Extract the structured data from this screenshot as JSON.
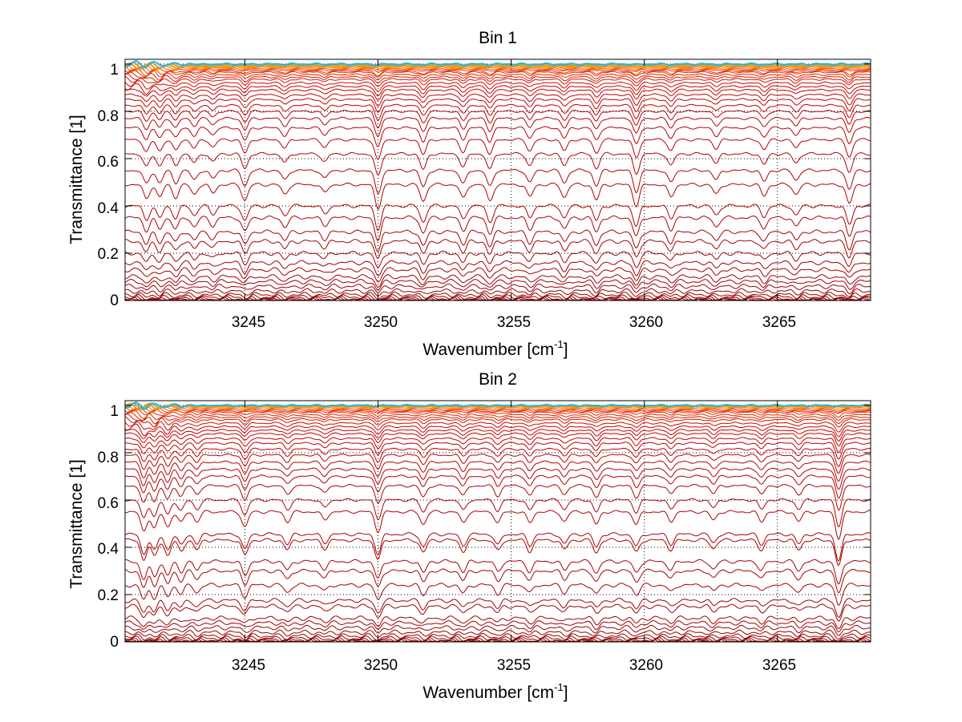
{
  "figure": {
    "panels": [
      {
        "title": "Bin 1",
        "xlabel_main": "Wavenumber [cm",
        "xlabel_sup": "-1",
        "xlabel_end": "]",
        "ylabel": "Transmittance [1]",
        "yticks": [
          "0",
          "0.2",
          "0.4",
          "0.6",
          "0.8",
          "1"
        ],
        "xticks": [
          "3245",
          "3250",
          "3255",
          "3260",
          "3265"
        ]
      },
      {
        "title": "Bin 2",
        "xlabel_main": "Wavenumber [cm",
        "xlabel_sup": "-1",
        "xlabel_end": "]",
        "ylabel": "Transmittance [1]",
        "yticks": [
          "0",
          "0.2",
          "0.4",
          "0.6",
          "0.8",
          "1"
        ],
        "xticks": [
          "3245",
          "3250",
          "3255",
          "3260",
          "3265"
        ]
      }
    ]
  },
  "chart_data": [
    {
      "type": "line",
      "title": "Bin 1",
      "xlabel": "Wavenumber [cm-1]",
      "ylabel": "Transmittance [1]",
      "xlim": [
        3240.5,
        3268.5
      ],
      "ylim": [
        0,
        1.02
      ],
      "xticks": [
        3245,
        3250,
        3255,
        3260,
        3265
      ],
      "yticks": [
        0,
        0.2,
        0.4,
        0.6,
        0.8,
        1
      ],
      "grid": true,
      "legend": "none",
      "absorption_lines_x": [
        3241.3,
        3241.8,
        3242.4,
        3243.1,
        3243.8,
        3245.0,
        3246.5,
        3248.0,
        3250.0,
        3251.7,
        3253.2,
        3254.2,
        3255.7,
        3257.0,
        3258.2,
        3259.7,
        3261.0,
        3262.7,
        3264.5,
        3265.7,
        3267.7
      ],
      "absorption_line_depths": [
        0.5,
        0.45,
        0.45,
        0.35,
        0.3,
        0.55,
        0.35,
        0.3,
        0.85,
        0.6,
        0.5,
        0.6,
        0.45,
        0.45,
        0.55,
        0.75,
        0.45,
        0.35,
        0.4,
        0.35,
        0.7
      ],
      "series_baseline_transmittance": [
        1.0,
        0.995,
        0.99,
        0.985,
        0.98,
        0.975,
        0.97,
        0.965,
        0.955,
        0.945,
        0.935,
        0.92,
        0.905,
        0.89,
        0.87,
        0.85,
        0.825,
        0.8,
        0.77,
        0.73,
        0.68,
        0.62,
        0.55,
        0.49,
        0.4,
        0.35,
        0.29,
        0.25,
        0.2,
        0.16,
        0.13,
        0.1,
        0.08,
        0.06,
        0.04,
        0.025,
        0.015,
        0.008,
        0.004,
        0.001
      ]
    },
    {
      "type": "line",
      "title": "Bin 2",
      "xlabel": "Wavenumber [cm-1]",
      "ylabel": "Transmittance [1]",
      "xlim": [
        3240.5,
        3268.5
      ],
      "ylim": [
        0,
        1.02
      ],
      "xticks": [
        3245,
        3250,
        3255,
        3260,
        3265
      ],
      "yticks": [
        0,
        0.2,
        0.4,
        0.6,
        0.8,
        1
      ],
      "grid": true,
      "legend": "none",
      "absorption_lines_x": [
        3241.2,
        3241.6,
        3242.1,
        3242.6,
        3243.2,
        3245.0,
        3246.6,
        3248.0,
        3250.0,
        3251.7,
        3253.2,
        3254.5,
        3255.7,
        3257.0,
        3258.2,
        3259.7,
        3261.0,
        3262.6,
        3264.4,
        3265.8,
        3267.3
      ],
      "absorption_line_depths": [
        0.7,
        0.6,
        0.55,
        0.4,
        0.35,
        0.55,
        0.35,
        0.3,
        0.7,
        0.45,
        0.4,
        0.4,
        0.4,
        0.35,
        0.45,
        0.45,
        0.35,
        0.3,
        0.35,
        0.35,
        0.95
      ],
      "series_baseline_transmittance": [
        1.0,
        0.998,
        0.995,
        0.99,
        0.985,
        0.98,
        0.975,
        0.97,
        0.96,
        0.95,
        0.94,
        0.925,
        0.91,
        0.895,
        0.88,
        0.86,
        0.84,
        0.815,
        0.79,
        0.76,
        0.73,
        0.7,
        0.66,
        0.6,
        0.55,
        0.455,
        0.43,
        0.34,
        0.3,
        0.24,
        0.175,
        0.15,
        0.1,
        0.08,
        0.06,
        0.04,
        0.025,
        0.015,
        0.008,
        0.004,
        0.001
      ]
    }
  ]
}
